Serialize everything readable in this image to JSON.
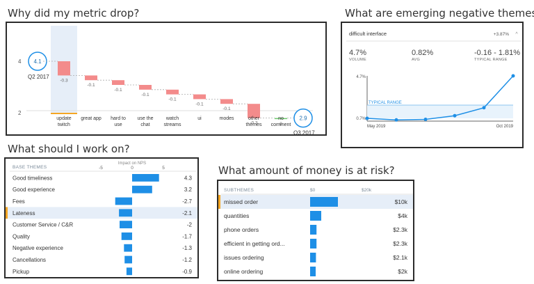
{
  "headings": {
    "metric_drop": "Why did my metric drop?",
    "emerging": "What are emerging negative themes?",
    "work_on": "What should I work on?",
    "money": "What amount of money is at risk?"
  },
  "colors": {
    "bar_blue": "#1e8fe6",
    "negative_red": "#f38b8b",
    "positive_green": "#6cc86c",
    "accent_orange": "#f5a623",
    "highlight": "#e6eef8"
  },
  "chart_data": [
    {
      "type": "bar",
      "subtype": "waterfall",
      "y_ticks": [
        "4",
        "2"
      ],
      "start": {
        "label": "Q2 2017",
        "value": 4.1,
        "value_label": "4.1"
      },
      "end": {
        "label": "Q3 2017",
        "value": 2.9,
        "value_label": "2.9"
      },
      "categories": [
        "update twitch",
        "great app",
        "hard to use",
        "use the chat",
        "watch streams",
        "ui",
        "modes",
        "other themes",
        "no comment"
      ],
      "values": [
        -0.3,
        -0.1,
        -0.1,
        -0.1,
        -0.1,
        -0.1,
        -0.1,
        -0.3,
        0
      ],
      "value_labels": [
        "-0.3",
        "-0.1",
        "-0.1",
        "-0.1",
        "-0.1",
        "-0.1",
        "-0.1",
        "-0.3",
        "0"
      ],
      "highlighted_category": "update twitch"
    },
    {
      "type": "line",
      "theme": "difficult interface",
      "change": "+3.87%",
      "stats": [
        {
          "value": "4.7%",
          "label": "VOLUME"
        },
        {
          "value": "0.82%",
          "label": "AVG"
        },
        {
          "value": "-0.16 - 1.81%",
          "label": "TYPICAL RANGE"
        }
      ],
      "band_label": "TYPICAL RANGE",
      "y_ticks": [
        "4.7%",
        "0.7%"
      ],
      "x_labels": [
        "May 2019",
        "Oct 2019"
      ],
      "ylim": [
        0.7,
        4.7
      ],
      "typical_range": [
        -0.16,
        1.81
      ],
      "x": [
        0,
        1,
        2,
        3,
        4,
        5
      ],
      "values": [
        0.7,
        0.55,
        0.6,
        0.95,
        1.7,
        4.7
      ]
    },
    {
      "type": "bar",
      "orientation": "horizontal",
      "title": "Impact on NPS",
      "column_header": "BASE THEMES",
      "x_ticks": [
        "-5",
        "0",
        "5"
      ],
      "xlim": [
        -5,
        5
      ],
      "categories": [
        "Good timeliness",
        "Good experience",
        "Fees",
        "Lateness",
        "Customer Service / C&R",
        "Quality",
        "Negative experience",
        "Cancellations",
        "Pickup"
      ],
      "values": [
        4.3,
        3.2,
        -2.7,
        -2.1,
        -2,
        -1.7,
        -1.3,
        -1.2,
        -0.9
      ],
      "value_labels": [
        "4.3",
        "3.2",
        "-2.7",
        "-2.1",
        "-2",
        "-1.7",
        "-1.3",
        "-1.2",
        "-0.9"
      ],
      "highlighted_category": "Lateness"
    },
    {
      "type": "bar",
      "orientation": "horizontal",
      "column_header": "SUBTHEMES",
      "x_ticks": [
        "$0",
        "$20k"
      ],
      "xlim": [
        0,
        20
      ],
      "categories": [
        "missed order",
        "quantities",
        "phone orders",
        "efficient in getting ord...",
        "issues ordering",
        "online ordering"
      ],
      "values": [
        10,
        4,
        2.3,
        2.3,
        2.1,
        2
      ],
      "value_labels": [
        "$10k",
        "$4k",
        "$2.3k",
        "$2.3k",
        "$2.1k",
        "$2k"
      ],
      "highlighted_category": "missed order"
    }
  ]
}
